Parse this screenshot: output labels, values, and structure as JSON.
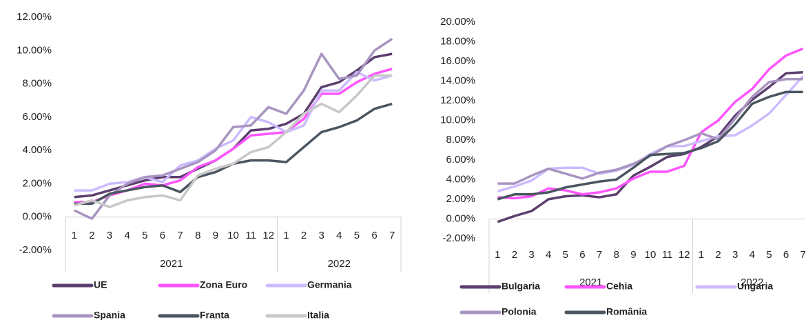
{
  "chart_data": [
    {
      "type": "line",
      "groups": [
        {
          "label": "2021",
          "categories": [
            "1",
            "2",
            "3",
            "4",
            "5",
            "6",
            "7",
            "8",
            "9",
            "10",
            "11",
            "12"
          ]
        },
        {
          "label": "2022",
          "categories": [
            "1",
            "2",
            "3",
            "4",
            "5",
            "6",
            "7"
          ]
        }
      ],
      "ylim": [
        -2,
        12
      ],
      "yticks": [
        {
          "value": -2,
          "label": "-2.00%"
        },
        {
          "value": 0,
          "label": "0.00%"
        },
        {
          "value": 2,
          "label": "2.00%"
        },
        {
          "value": 4,
          "label": "4.00%"
        },
        {
          "value": 6,
          "label": "6.00%"
        },
        {
          "value": 8,
          "label": "8.00%"
        },
        {
          "value": 10,
          "label": "10.00%"
        },
        {
          "value": 12,
          "label": "12.00%"
        }
      ],
      "series": [
        {
          "name": "UE",
          "color": "#5b3f6e",
          "values": [
            1.2,
            1.3,
            1.6,
            1.9,
            2.2,
            2.4,
            2.4,
            2.9,
            3.4,
            4.1,
            5.2,
            5.3,
            5.6,
            6.2,
            7.8,
            8.1,
            8.8,
            9.6,
            9.8
          ]
        },
        {
          "name": "Zona Euro",
          "color": "#ff55ff",
          "values": [
            0.9,
            0.9,
            1.3,
            1.6,
            2.0,
            1.9,
            2.2,
            3.0,
            3.4,
            4.1,
            4.9,
            5.0,
            5.1,
            5.9,
            7.4,
            7.4,
            8.1,
            8.6,
            8.9
          ]
        },
        {
          "name": "Germania",
          "color": "#ccbbff",
          "values": [
            1.6,
            1.6,
            2.0,
            2.1,
            2.4,
            2.1,
            3.1,
            3.4,
            4.1,
            4.6,
            6.0,
            5.7,
            5.1,
            5.5,
            7.6,
            7.6,
            8.7,
            8.2,
            8.5
          ]
        },
        {
          "name": "Spania",
          "color": "#a894c0",
          "values": [
            0.4,
            -0.1,
            1.3,
            2.0,
            2.4,
            2.5,
            2.9,
            3.3,
            4.0,
            5.4,
            5.5,
            6.6,
            6.2,
            7.6,
            9.8,
            8.3,
            8.5,
            10.0,
            10.7
          ]
        },
        {
          "name": "Franta",
          "color": "#4a5560",
          "values": [
            0.8,
            0.8,
            1.4,
            1.6,
            1.8,
            1.9,
            1.5,
            2.4,
            2.7,
            3.2,
            3.4,
            3.4,
            3.3,
            4.2,
            5.1,
            5.4,
            5.8,
            6.5,
            6.8
          ]
        },
        {
          "name": "Italia",
          "color": "#c8c8c8",
          "values": [
            0.7,
            1.0,
            0.6,
            1.0,
            1.2,
            1.3,
            1.0,
            2.5,
            2.9,
            3.2,
            3.9,
            4.2,
            5.1,
            6.2,
            6.8,
            6.3,
            7.3,
            8.5,
            8.5
          ]
        }
      ]
    },
    {
      "type": "line",
      "groups": [
        {
          "label": "2021",
          "categories": [
            "1",
            "2",
            "3",
            "4",
            "5",
            "6",
            "7",
            "8",
            "9",
            "10",
            "11",
            "12"
          ]
        },
        {
          "label": "2022",
          "categories": [
            "1",
            "2",
            "3",
            "4",
            "5",
            "6",
            "7"
          ]
        }
      ],
      "ylim": [
        -2,
        20
      ],
      "yticks": [
        {
          "value": -2,
          "label": "-2.00%"
        },
        {
          "value": 0,
          "label": "0.00%"
        },
        {
          "value": 2,
          "label": "2.00%"
        },
        {
          "value": 4,
          "label": "4.00%"
        },
        {
          "value": 6,
          "label": "6.00%"
        },
        {
          "value": 8,
          "label": "8.00%"
        },
        {
          "value": 10,
          "label": "10.00%"
        },
        {
          "value": 12,
          "label": "12.00%"
        },
        {
          "value": 14,
          "label": "14.00%"
        },
        {
          "value": 16,
          "label": "16.00%"
        },
        {
          "value": 18,
          "label": "18.00%"
        },
        {
          "value": 20,
          "label": "20.00%"
        }
      ],
      "series": [
        {
          "name": "Bulgaria",
          "color": "#5b3f6e",
          "values": [
            -0.3,
            0.3,
            0.8,
            2.0,
            2.3,
            2.4,
            2.2,
            2.5,
            4.4,
            5.3,
            6.3,
            6.6,
            7.3,
            8.4,
            10.5,
            12.1,
            13.4,
            14.8,
            14.9
          ]
        },
        {
          "name": "Cehia",
          "color": "#ff55ff",
          "values": [
            2.2,
            2.1,
            2.3,
            3.1,
            2.9,
            2.5,
            2.7,
            3.1,
            4.1,
            4.8,
            4.8,
            5.4,
            8.8,
            10.0,
            11.9,
            13.2,
            15.2,
            16.6,
            17.3
          ]
        },
        {
          "name": "Ungaria",
          "color": "#ccbbff",
          "values": [
            2.8,
            3.3,
            3.9,
            5.1,
            5.2,
            5.2,
            4.6,
            4.9,
            5.5,
            6.6,
            7.4,
            7.4,
            7.9,
            8.4,
            8.5,
            9.5,
            10.7,
            12.6,
            14.5
          ]
        },
        {
          "name": "Polonia",
          "color": "#a894c0",
          "values": [
            3.6,
            3.6,
            4.4,
            5.1,
            4.6,
            4.1,
            4.7,
            5.0,
            5.6,
            6.4,
            7.4,
            8.0,
            8.7,
            8.1,
            10.2,
            12.4,
            13.9,
            14.2,
            14.2
          ]
        },
        {
          "name": "România",
          "color": "#4a5560",
          "values": [
            2.0,
            2.5,
            2.5,
            2.7,
            3.2,
            3.5,
            3.8,
            4.0,
            5.2,
            6.5,
            6.6,
            6.7,
            7.2,
            7.9,
            9.6,
            11.7,
            12.4,
            12.9,
            12.9
          ]
        }
      ]
    }
  ]
}
